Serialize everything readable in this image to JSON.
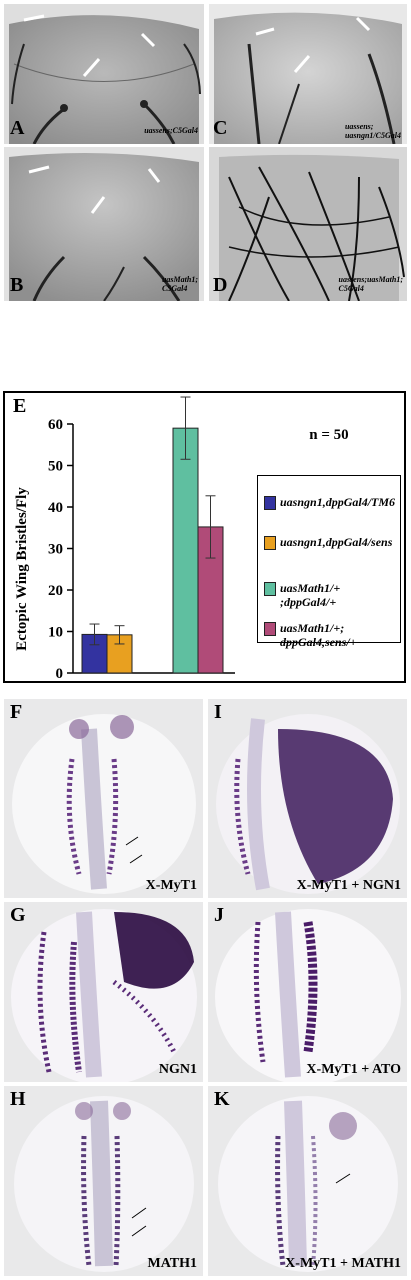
{
  "panels_top": [
    {
      "label": "A",
      "genotype": [
        "uassens;C5Gal4"
      ]
    },
    {
      "label": "B",
      "genotype": [
        "uasMath1;",
        "C5Gal4"
      ]
    },
    {
      "label": "C",
      "genotype": [
        "uassens;",
        "uasngn1/C5Gal4"
      ]
    },
    {
      "label": "D",
      "genotype": [
        "uassens;uasMath1;",
        "C5Gal4"
      ]
    }
  ],
  "chart_data": {
    "type": "bar",
    "panel_label": "E",
    "ylabel": "Ectopic Wing Bristles/Fly",
    "ylim": [
      0,
      60
    ],
    "yticks": [
      0,
      10,
      20,
      30,
      40,
      50,
      60
    ],
    "annotation": "n = 50",
    "legend_placement": "right",
    "series": [
      {
        "name": "uasngn1,dppGal4/TM6",
        "value": 9.3,
        "error": 2.5,
        "color": "#3333a0"
      },
      {
        "name": "uasngn1,dppGal4/sens",
        "value": 9.2,
        "error": 2.2,
        "color": "#e8a020"
      },
      {
        "name": "uasMath1/+ ;dppGal4/+",
        "value": 59,
        "error": 7.5,
        "color": "#5fbfa0"
      },
      {
        "name": "uasMath1/+; dppGal4,sens/+",
        "value": 35.2,
        "error": 7.5,
        "color": "#b04b78"
      }
    ],
    "legend_lines": [
      [
        "uasngn1,dppGal4/TM6"
      ],
      [
        "uasngn1,dppGal4/sens"
      ],
      [
        "uasMath1/+",
        ";dppGal4/+"
      ],
      [
        "uasMath1/+;",
        "dppGal4,sens/+"
      ]
    ]
  },
  "panels_bottom": [
    {
      "label": "F",
      "caption": "X-MyT1"
    },
    {
      "label": "I",
      "caption": "X-MyT1 + NGN1"
    },
    {
      "label": "G",
      "caption": "NGN1"
    },
    {
      "label": "J",
      "caption": "X-MyT1 + ATO"
    },
    {
      "label": "H",
      "caption": "MATH1"
    },
    {
      "label": "K",
      "caption": "X-MyT1 + MATH1"
    }
  ]
}
